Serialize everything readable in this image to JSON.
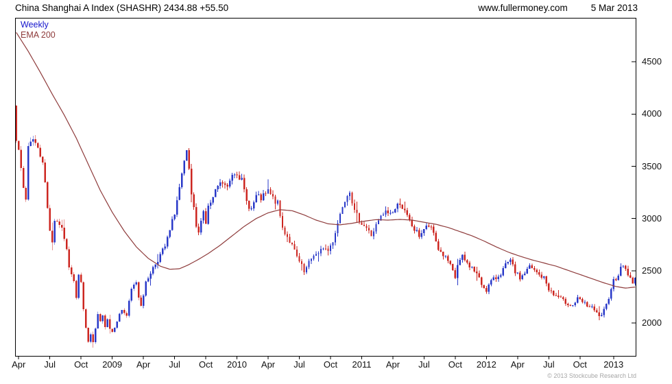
{
  "header": {
    "title": "China Shanghai A Index (SHASHR) 2434.88 +55.50",
    "website": "www.fullermoney.com",
    "date": "5 Mar 2013"
  },
  "legend": {
    "timeframe": "Weekly",
    "overlay": "EMA 200"
  },
  "footer": {
    "copyright": "© 2013 Stockcube Research Ltd"
  },
  "colors": {
    "up": "#2838c8",
    "down": "#cc2620",
    "ema": "#8e3b3b",
    "weekly_label": "#1414cc",
    "ema_label": "#8e3b3b",
    "axis": "#000000",
    "label": "#111111"
  },
  "chart_data": {
    "type": "candlestick",
    "title": "China Shanghai A Index (SHASHR)",
    "timeframe": "weekly",
    "overlay": "EMA 200",
    "last_close": 2434.88,
    "prev_close": 2379.38,
    "change": 55.5,
    "weeks": 259,
    "first_open": 4080,
    "ylim": [
      1680,
      4920
    ],
    "y_ticks": [
      2000,
      2500,
      3000,
      3500,
      4000,
      4500
    ],
    "x_ticks": [
      {
        "label": "Apr",
        "week": 1
      },
      {
        "label": "Jul",
        "week": 14
      },
      {
        "label": "Oct",
        "week": 27
      },
      {
        "label": "2009",
        "week": 40
      },
      {
        "label": "Apr",
        "week": 53
      },
      {
        "label": "Jul",
        "week": 66
      },
      {
        "label": "Oct",
        "week": 79
      },
      {
        "label": "2010",
        "week": 92
      },
      {
        "label": "Apr",
        "week": 105
      },
      {
        "label": "Jul",
        "week": 118
      },
      {
        "label": "Oct",
        "week": 131
      },
      {
        "label": "2011",
        "week": 144
      },
      {
        "label": "Apr",
        "week": 157
      },
      {
        "label": "Jul",
        "week": 170
      },
      {
        "label": "Oct",
        "week": 183
      },
      {
        "label": "2012",
        "week": 196
      },
      {
        "label": "Apr",
        "week": 209
      },
      {
        "label": "Jul",
        "week": 222
      },
      {
        "label": "Oct",
        "week": 235
      },
      {
        "label": "2013",
        "week": 249
      }
    ],
    "note": "anchors are [weekIndex, value] pairs read from the chart; week 0 = late Mar 2008, week 258 = 5 Mar 2013",
    "close_anchors": [
      [
        0,
        3780
      ],
      [
        1,
        3690
      ],
      [
        2,
        3450
      ],
      [
        3,
        3280
      ],
      [
        4,
        3180
      ],
      [
        5,
        3700
      ],
      [
        7,
        3780
      ],
      [
        9,
        3660
      ],
      [
        11,
        3560
      ],
      [
        13,
        3100
      ],
      [
        14,
        2900
      ],
      [
        15,
        2780
      ],
      [
        16,
        2990
      ],
      [
        18,
        2950
      ],
      [
        20,
        2820
      ],
      [
        22,
        2550
      ],
      [
        24,
        2420
      ],
      [
        25,
        2250
      ],
      [
        26,
        2460
      ],
      [
        27,
        2380
      ],
      [
        28,
        2150
      ],
      [
        29,
        1940
      ],
      [
        30,
        1820
      ],
      [
        31,
        1890
      ],
      [
        32,
        1810
      ],
      [
        33,
        1930
      ],
      [
        34,
        2080
      ],
      [
        35,
        2000
      ],
      [
        36,
        2060
      ],
      [
        37,
        1980
      ],
      [
        38,
        2050
      ],
      [
        39,
        1950
      ],
      [
        40,
        1920
      ],
      [
        42,
        2030
      ],
      [
        44,
        2130
      ],
      [
        46,
        2070
      ],
      [
        48,
        2320
      ],
      [
        50,
        2400
      ],
      [
        51,
        2250
      ],
      [
        52,
        2180
      ],
      [
        54,
        2380
      ],
      [
        56,
        2490
      ],
      [
        58,
        2570
      ],
      [
        60,
        2650
      ],
      [
        62,
        2730
      ],
      [
        64,
        2880
      ],
      [
        66,
        3060
      ],
      [
        68,
        3290
      ],
      [
        70,
        3520
      ],
      [
        71,
        3630
      ],
      [
        72,
        3470
      ],
      [
        73,
        3200
      ],
      [
        74,
        3080
      ],
      [
        75,
        2920
      ],
      [
        76,
        2850
      ],
      [
        77,
        3010
      ],
      [
        78,
        3070
      ],
      [
        79,
        2960
      ],
      [
        80,
        3110
      ],
      [
        82,
        3190
      ],
      [
        84,
        3310
      ],
      [
        86,
        3340
      ],
      [
        88,
        3290
      ],
      [
        90,
        3430
      ],
      [
        92,
        3450
      ],
      [
        94,
        3360
      ],
      [
        96,
        3160
      ],
      [
        98,
        3090
      ],
      [
        100,
        3210
      ],
      [
        102,
        3190
      ],
      [
        104,
        3230
      ],
      [
        105,
        3260
      ],
      [
        107,
        3190
      ],
      [
        109,
        3140
      ],
      [
        111,
        2910
      ],
      [
        113,
        2830
      ],
      [
        115,
        2740
      ],
      [
        117,
        2630
      ],
      [
        119,
        2540
      ],
      [
        120,
        2480
      ],
      [
        122,
        2570
      ],
      [
        124,
        2660
      ],
      [
        126,
        2650
      ],
      [
        128,
        2730
      ],
      [
        130,
        2690
      ],
      [
        132,
        2790
      ],
      [
        134,
        2960
      ],
      [
        136,
        3130
      ],
      [
        137,
        3190
      ],
      [
        139,
        3280
      ],
      [
        141,
        3060
      ],
      [
        143,
        2990
      ],
      [
        144,
        2960
      ],
      [
        146,
        2910
      ],
      [
        148,
        2840
      ],
      [
        150,
        2930
      ],
      [
        152,
        3010
      ],
      [
        154,
        3060
      ],
      [
        156,
        3050
      ],
      [
        158,
        3090
      ],
      [
        160,
        3160
      ],
      [
        162,
        3060
      ],
      [
        164,
        2970
      ],
      [
        166,
        2890
      ],
      [
        168,
        2840
      ],
      [
        170,
        2900
      ],
      [
        172,
        2930
      ],
      [
        174,
        2860
      ],
      [
        176,
        2710
      ],
      [
        178,
        2650
      ],
      [
        180,
        2590
      ],
      [
        182,
        2490
      ],
      [
        183,
        2430
      ],
      [
        184,
        2560
      ],
      [
        186,
        2630
      ],
      [
        188,
        2570
      ],
      [
        190,
        2530
      ],
      [
        192,
        2470
      ],
      [
        194,
        2370
      ],
      [
        196,
        2320
      ],
      [
        198,
        2400
      ],
      [
        200,
        2430
      ],
      [
        202,
        2480
      ],
      [
        204,
        2550
      ],
      [
        206,
        2590
      ],
      [
        208,
        2490
      ],
      [
        210,
        2430
      ],
      [
        212,
        2480
      ],
      [
        214,
        2540
      ],
      [
        216,
        2500
      ],
      [
        218,
        2460
      ],
      [
        220,
        2430
      ],
      [
        222,
        2330
      ],
      [
        224,
        2270
      ],
      [
        226,
        2250
      ],
      [
        228,
        2210
      ],
      [
        230,
        2190
      ],
      [
        232,
        2170
      ],
      [
        234,
        2230
      ],
      [
        236,
        2200
      ],
      [
        238,
        2170
      ],
      [
        240,
        2140
      ],
      [
        242,
        2090
      ],
      [
        244,
        2060
      ],
      [
        246,
        2170
      ],
      [
        248,
        2340
      ],
      [
        249,
        2410
      ],
      [
        250,
        2430
      ],
      [
        252,
        2520
      ],
      [
        253,
        2560
      ],
      [
        255,
        2470
      ],
      [
        256,
        2420
      ],
      [
        257,
        2379.38
      ],
      [
        258,
        2434.88
      ]
    ],
    "ema_anchors": [
      [
        0,
        4780
      ],
      [
        5,
        4600
      ],
      [
        10,
        4400
      ],
      [
        15,
        4190
      ],
      [
        20,
        3990
      ],
      [
        25,
        3770
      ],
      [
        30,
        3520
      ],
      [
        35,
        3270
      ],
      [
        40,
        3060
      ],
      [
        45,
        2880
      ],
      [
        50,
        2730
      ],
      [
        55,
        2620
      ],
      [
        60,
        2545
      ],
      [
        64,
        2515
      ],
      [
        68,
        2520
      ],
      [
        72,
        2560
      ],
      [
        76,
        2610
      ],
      [
        80,
        2665
      ],
      [
        85,
        2745
      ],
      [
        90,
        2835
      ],
      [
        95,
        2925
      ],
      [
        100,
        3000
      ],
      [
        105,
        3055
      ],
      [
        110,
        3085
      ],
      [
        115,
        3075
      ],
      [
        120,
        3035
      ],
      [
        125,
        2985
      ],
      [
        130,
        2950
      ],
      [
        135,
        2940
      ],
      [
        140,
        2955
      ],
      [
        145,
        2975
      ],
      [
        150,
        2990
      ],
      [
        155,
        2985
      ],
      [
        160,
        2992
      ],
      [
        165,
        2985
      ],
      [
        170,
        2965
      ],
      [
        175,
        2945
      ],
      [
        180,
        2915
      ],
      [
        185,
        2875
      ],
      [
        190,
        2835
      ],
      [
        195,
        2785
      ],
      [
        200,
        2730
      ],
      [
        205,
        2680
      ],
      [
        210,
        2640
      ],
      [
        215,
        2605
      ],
      [
        220,
        2575
      ],
      [
        225,
        2545
      ],
      [
        230,
        2505
      ],
      [
        235,
        2465
      ],
      [
        240,
        2425
      ],
      [
        245,
        2385
      ],
      [
        250,
        2350
      ],
      [
        254,
        2335
      ],
      [
        258,
        2345
      ]
    ],
    "render": {
      "seed": 7,
      "noise": 0.01,
      "wick": 0.012,
      "big_wick_chance": 0.12,
      "big_wick_mult": 2.5
    }
  }
}
